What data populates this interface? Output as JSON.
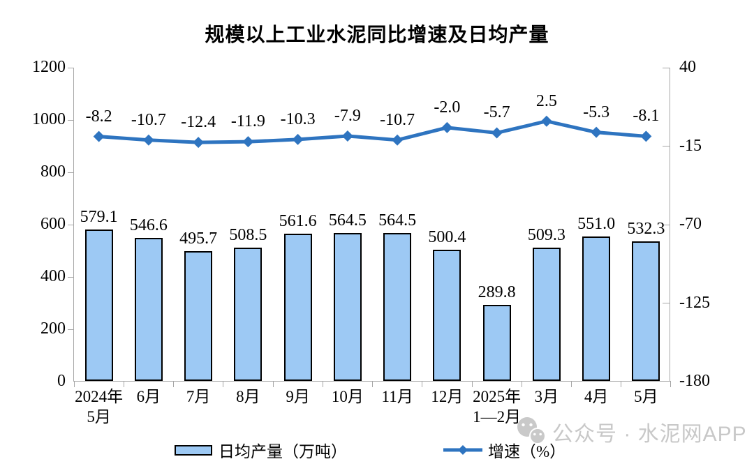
{
  "title": "规模以上工业水泥同比增速及日均产量",
  "chart_data": {
    "type": "bar+line combo, dual axis",
    "categories": [
      "2024年\n5月",
      "6月",
      "7月",
      "8月",
      "9月",
      "10月",
      "11月",
      "12月",
      "2025年\n1—2月",
      "3月",
      "4月",
      "5月"
    ],
    "series": [
      {
        "name": "日均产量（万吨）",
        "type": "bar",
        "axis": "left",
        "values": [
          579.1,
          546.6,
          495.7,
          508.5,
          561.6,
          564.5,
          564.5,
          500.4,
          289.8,
          509.3,
          551.0,
          532.3
        ],
        "labels": [
          "579.1",
          "546.6",
          "495.7",
          "508.5",
          "561.6",
          "564.5",
          "564.5",
          "500.4",
          "289.8",
          "509.3",
          "551.0",
          "532.3"
        ]
      },
      {
        "name": "增速（%）",
        "type": "line",
        "axis": "right",
        "values": [
          -8.2,
          -10.7,
          -12.4,
          -11.9,
          -10.3,
          -7.9,
          -10.7,
          -2.0,
          -5.7,
          2.5,
          -5.3,
          -8.1
        ],
        "labels": [
          "-8.2",
          "-10.7",
          "-12.4",
          "-11.9",
          "-10.3",
          "-7.9",
          "-10.7",
          "-2.0",
          "-5.7",
          "2.5",
          "-5.3",
          "-8.1"
        ]
      }
    ],
    "left_axis": {
      "min": 0,
      "max": 1200,
      "ticks": [
        0,
        200,
        400,
        600,
        800,
        1000,
        1200
      ]
    },
    "right_axis": {
      "min": -180,
      "max": 40,
      "ticks": [
        40,
        -15,
        -70,
        -125,
        -180
      ]
    },
    "grid": false,
    "legend_position": "bottom",
    "colors": {
      "bar_fill": "#9DC9F4",
      "bar_border": "#000000",
      "line": "#2E74C0",
      "axis": "#a6a6a6"
    }
  },
  "legend": [
    {
      "label": "日均产量（万吨）"
    },
    {
      "label": "增速（%）"
    }
  ],
  "watermark": {
    "text": "公众号 · 水泥网APP"
  }
}
